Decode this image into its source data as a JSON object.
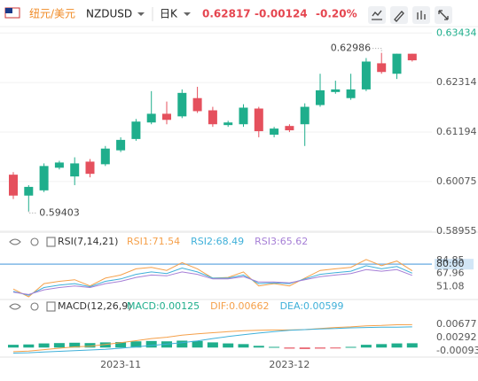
{
  "header": {
    "pair_cn": "纽元/美元",
    "symbol": "NZDUSD",
    "period": "日K",
    "price": "0.62817",
    "change": "-0.00124",
    "change_pct": "-0.20%"
  },
  "chart_data": [
    {
      "type": "candlestick",
      "up_color": "#1fae8c",
      "down_color": "#e5505d",
      "categories": [
        null,
        null,
        null,
        null,
        null,
        null,
        null,
        "2023-11",
        null,
        null,
        null,
        null,
        null,
        null,
        null,
        null,
        null,
        null,
        "2023-12",
        null,
        null,
        null,
        null,
        null,
        null,
        null,
        null
      ],
      "open": [
        0.6023,
        0.59757,
        0.59875,
        0.60387,
        0.6019,
        0.60525,
        0.60466,
        0.60781,
        0.61037,
        0.61411,
        0.61608,
        0.61549,
        0.61962,
        0.61686,
        0.61352,
        0.61371,
        0.61726,
        0.61135,
        0.61332,
        0.61371,
        0.61805,
        0.621,
        0.61962,
        0.62159,
        0.6275,
        0.62513,
        0.62966
      ],
      "high": [
        0.60289,
        0.59993,
        0.60485,
        0.60544,
        0.60623,
        0.60584,
        0.60879,
        0.61076,
        0.6149,
        0.6212,
        0.61884,
        0.62159,
        0.62218,
        0.61765,
        0.6145,
        0.61824,
        0.61765,
        0.61312,
        0.61371,
        0.61844,
        0.62513,
        0.62356,
        0.62513,
        0.62868,
        0.62986,
        0.62966,
        0.62966
      ],
      "low": [
        0.59678,
        0.59403,
        0.59836,
        0.60348,
        0.59993,
        0.6017,
        0.60426,
        0.60741,
        0.60997,
        0.61371,
        0.61371,
        0.61509,
        0.61627,
        0.61312,
        0.61312,
        0.61312,
        0.61076,
        0.61076,
        0.61194,
        0.60879,
        0.61765,
        0.62061,
        0.61923,
        0.6212,
        0.62513,
        0.62395,
        0.62789
      ],
      "close": [
        0.59757,
        0.59954,
        0.60426,
        0.60505,
        0.60485,
        0.60249,
        0.6082,
        0.61017,
        0.61431,
        0.61608,
        0.6147,
        0.6208,
        0.61667,
        0.61371,
        0.61411,
        0.61746,
        0.61214,
        0.61273,
        0.61234,
        0.61765,
        0.62139,
        0.62159,
        0.62159,
        0.62789,
        0.62553,
        0.62966,
        0.62817
      ],
      "ylim": [
        0.5893,
        0.6354
      ],
      "yticks": [
        0.63434,
        0.62314,
        0.61194,
        0.60075,
        0.58955
      ],
      "grid": true
    },
    {
      "type": "line",
      "title": "RSI(7,14,21)",
      "ylim": [
        38,
        95
      ],
      "yticks": [
        84.85,
        67.96,
        51.08
      ],
      "reference_lines": [
        {
          "value": 80,
          "label": "80.00",
          "color": "#7fb8e6"
        }
      ],
      "series": [
        {
          "name": "RSI1:71.54",
          "color": "#f5a04a",
          "values": [
            48,
            38,
            55,
            58,
            60,
            52,
            62,
            66,
            74,
            76,
            72,
            82,
            74,
            62,
            63,
            70,
            52,
            55,
            52,
            62,
            72,
            74,
            76,
            86,
            78,
            84,
            71.54
          ]
        },
        {
          "name": "RSI2:68.49",
          "color": "#3fb0d9",
          "values": [
            45,
            40,
            50,
            53,
            55,
            51,
            58,
            61,
            67,
            70,
            68,
            75,
            70,
            62,
            62,
            66,
            55,
            56,
            55,
            61,
            67,
            69,
            71,
            78,
            74,
            77,
            68.49
          ]
        },
        {
          "name": "RSI3:65.62",
          "color": "#a67fd6",
          "values": [
            44,
            41,
            47,
            50,
            52,
            50,
            55,
            58,
            63,
            66,
            65,
            70,
            67,
            61,
            61,
            64,
            57,
            57,
            56,
            60,
            64,
            66,
            68,
            73,
            71,
            73,
            65.62
          ]
        }
      ]
    },
    {
      "type": "combo",
      "title": "MACD(12,26,9)",
      "ylim": [
        -0.0025,
        0.0093
      ],
      "yticks": [
        0.00677,
        0.00292,
        -0.00093
      ],
      "series": [
        {
          "name": "MACD:0.00125",
          "kind": "bar",
          "color": "#1fae8c",
          "down_color": "#e5505d",
          "values": [
            0.0008,
            0.0009,
            0.0012,
            0.0013,
            0.0014,
            0.0013,
            0.0015,
            0.0016,
            0.0018,
            0.0019,
            0.0018,
            0.002,
            0.0019,
            0.0015,
            0.0012,
            0.001,
            0.0005,
            0.0002,
            -0.0003,
            -0.0004,
            -0.0003,
            -0.0002,
            0.0002,
            0.0008,
            0.001,
            0.0012,
            0.00125
          ]
        },
        {
          "name": "DIF:0.00662",
          "kind": "line",
          "color": "#f5a04a",
          "values": [
            -0.0012,
            -0.001,
            -0.0006,
            -0.0002,
            0.0002,
            0.0004,
            0.0009,
            0.0014,
            0.002,
            0.0026,
            0.003,
            0.0036,
            0.004,
            0.0043,
            0.0046,
            0.0049,
            0.005,
            0.0051,
            0.0051,
            0.0052,
            0.0055,
            0.0058,
            0.006,
            0.0063,
            0.0064,
            0.0066,
            0.00662
          ]
        },
        {
          "name": "DEA:0.00599",
          "kind": "line",
          "color": "#3fb0d9",
          "values": [
            -0.0016,
            -0.0015,
            -0.0013,
            -0.0011,
            -0.0009,
            -0.0007,
            -0.0005,
            -0.0002,
            0.0002,
            0.0006,
            0.001,
            0.0014,
            0.0019,
            0.0026,
            0.0032,
            0.0037,
            0.0042,
            0.0046,
            0.005,
            0.0052,
            0.0054,
            0.0055,
            0.0057,
            0.0058,
            0.0059,
            0.0059,
            0.00599
          ]
        }
      ]
    }
  ]
}
